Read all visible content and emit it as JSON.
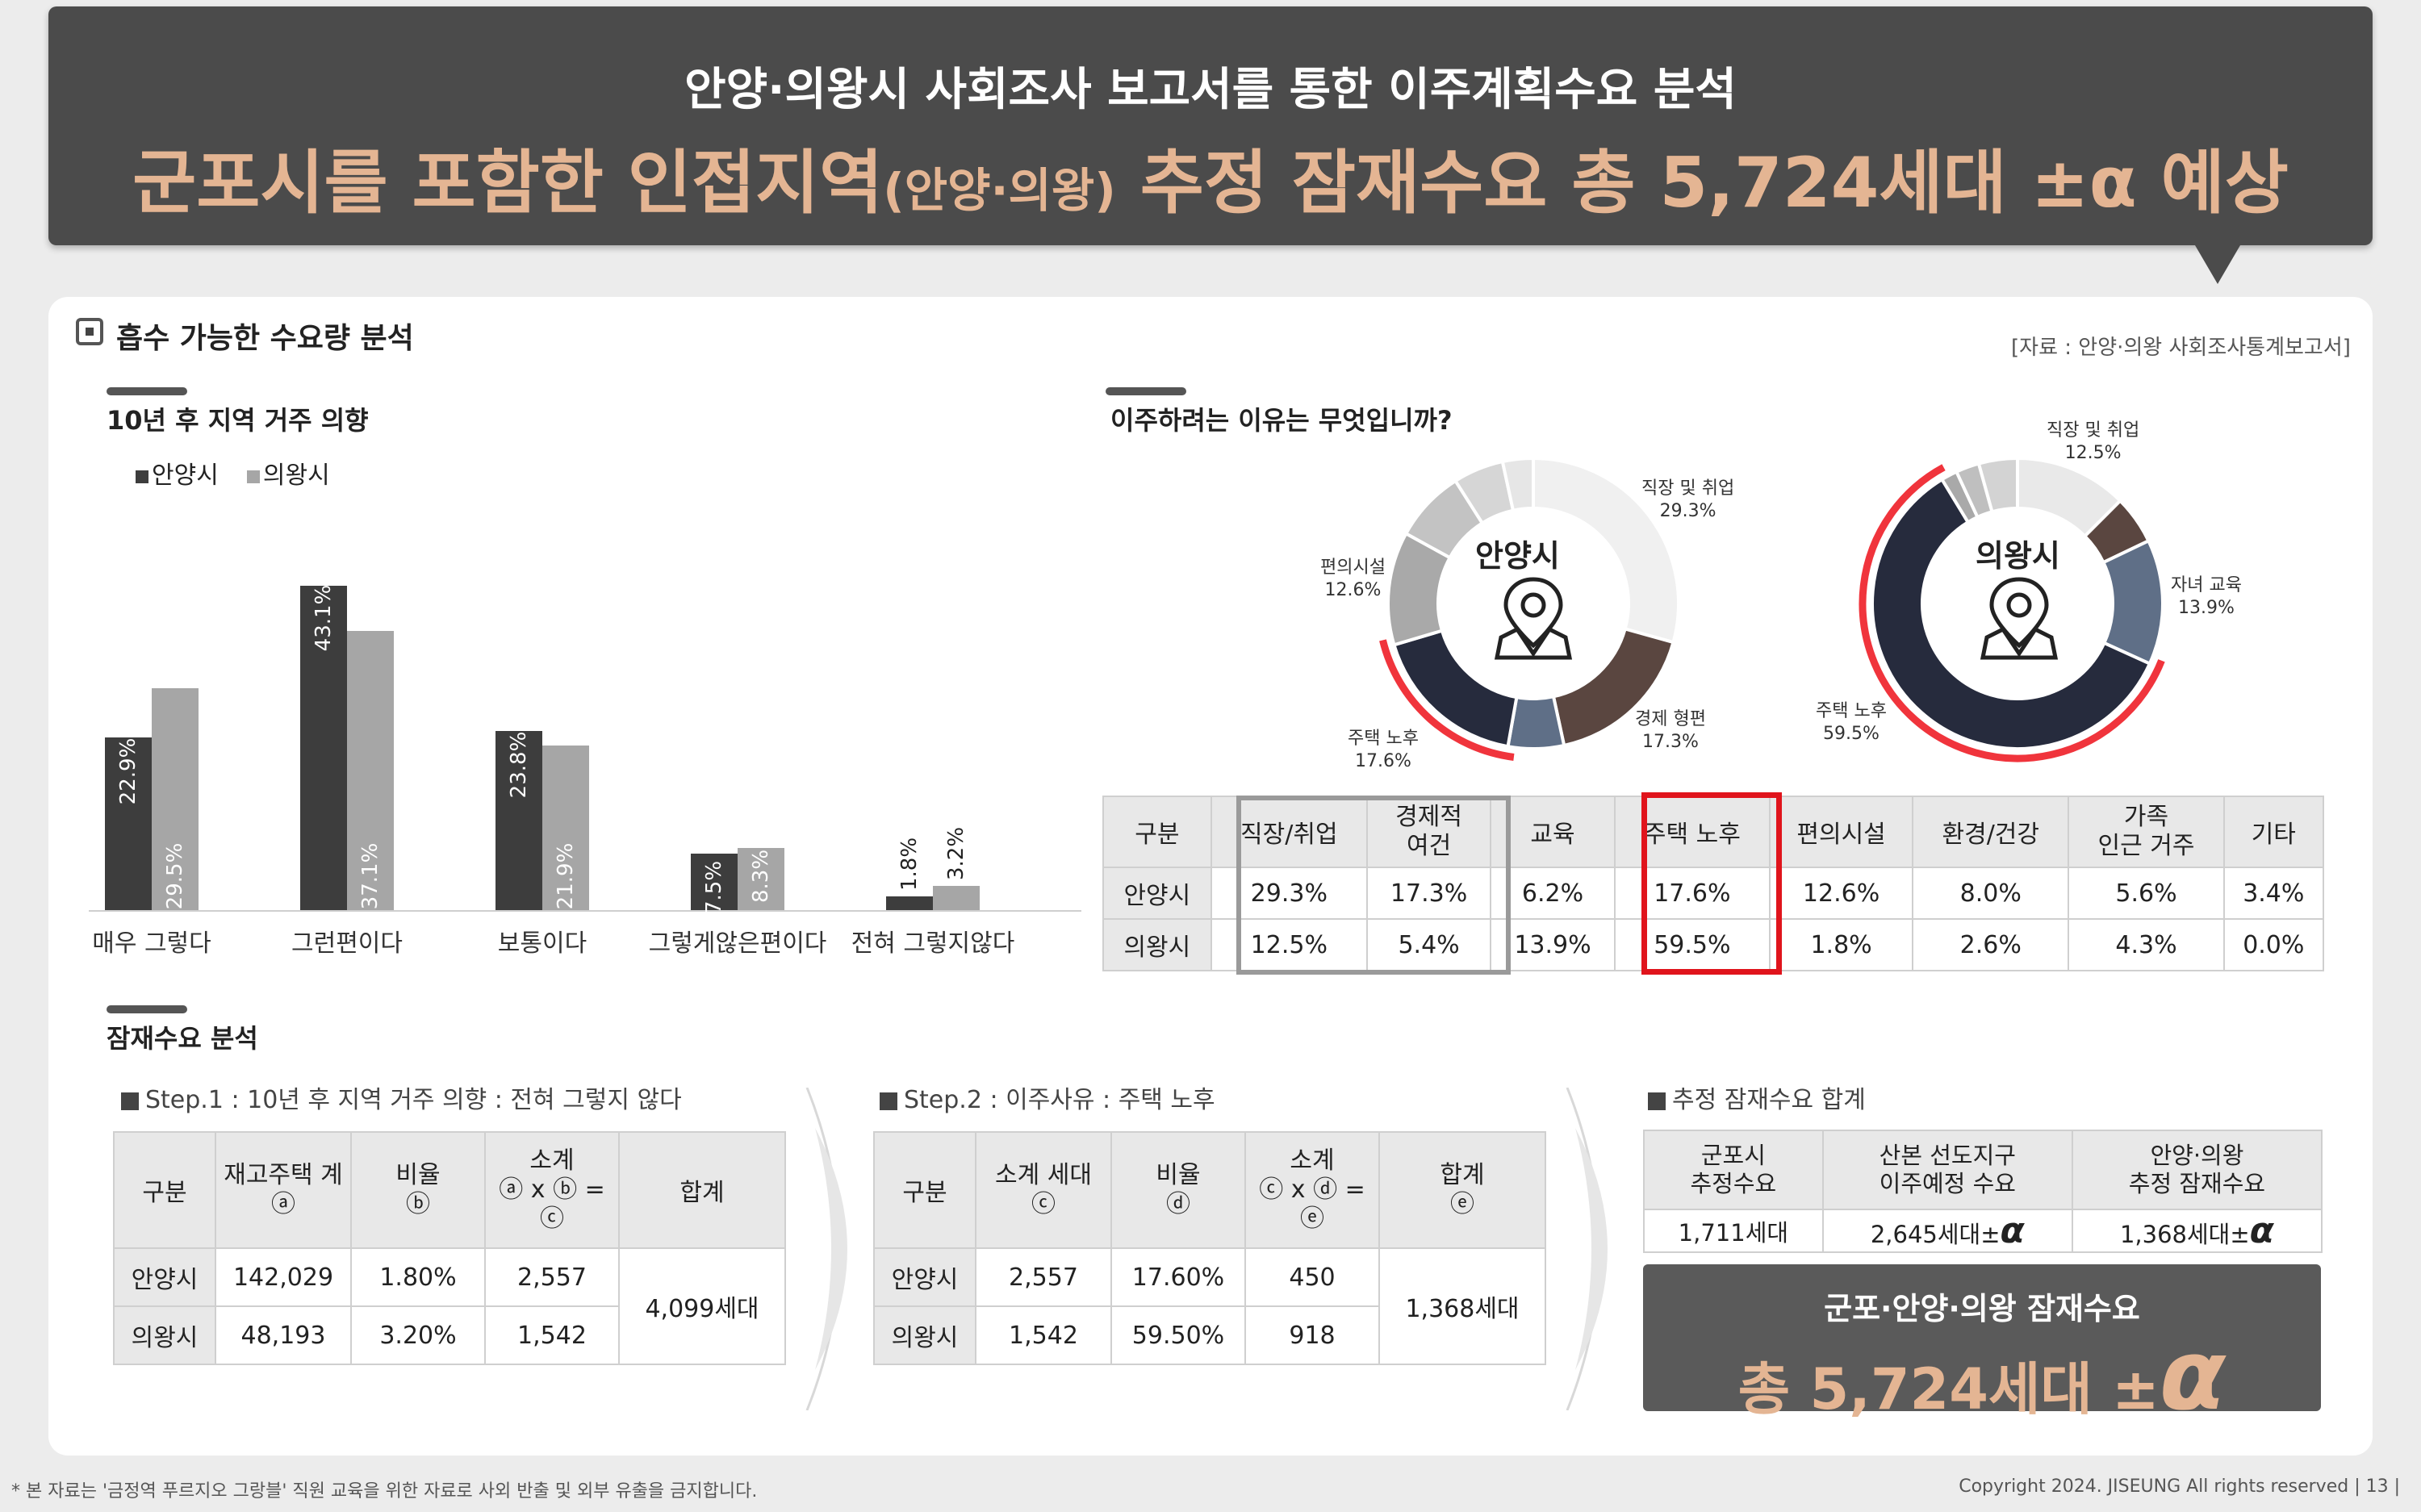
{
  "header": {
    "line1": "안양·의왕시 사회조사 보고서를 통한 이주계획수요 분석",
    "line2_a": "군포시를 포함한 인접지역",
    "line2_b": "(안양·의왕)",
    "line2_c": " 추정 잠재수요 총 5,724세대 ±α 예상"
  },
  "section": {
    "title": "흡수 가능한 수요량 분석",
    "source": "[자료 : 안양·의왕 사회조사통계보고서]"
  },
  "chart_data": [
    {
      "type": "bar",
      "title": "10년 후 지역 거주 의향",
      "categories": [
        "매우 그렇다",
        "그런편이다",
        "보통이다",
        "그렇게않은편이다",
        "전혀 그렇지않다"
      ],
      "series": [
        {
          "name": "안양시",
          "values": [
            22.9,
            43.1,
            23.8,
            7.5,
            1.8
          ],
          "labels": [
            "22.9%",
            "43.1%",
            "23.8%",
            "7.5%",
            "1.8%"
          ]
        },
        {
          "name": "의왕시",
          "values": [
            29.5,
            37.1,
            21.9,
            8.3,
            3.2
          ],
          "labels": [
            "29.5%",
            "37.1%",
            "21.9%",
            "8.3%",
            "3.2%"
          ]
        }
      ],
      "ylim": [
        0,
        45
      ],
      "colors": [
        "#3d3d3d",
        "#a6a6a6"
      ]
    },
    {
      "type": "pie",
      "title": "안양시",
      "slices": [
        {
          "label": "직장 및 취업",
          "value": 29.3,
          "color": "#f0f0f0"
        },
        {
          "label": "경제 형편",
          "value": 17.3,
          "color": "#5a4640"
        },
        {
          "label": "교육",
          "value": 6.2,
          "color": "#5f6f87"
        },
        {
          "label": "주택 노후",
          "value": 17.6,
          "color": "#262b3d"
        },
        {
          "label": "편의시설",
          "value": 12.6,
          "color": "#a9a9a9"
        },
        {
          "label": "환경/건강",
          "value": 8.0,
          "color": "#c3c3c3"
        },
        {
          "label": "가족 인근 거주",
          "value": 5.6,
          "color": "#d6d6d6"
        },
        {
          "label": "기타",
          "value": 3.4,
          "color": "#e6e6e6"
        }
      ]
    },
    {
      "type": "pie",
      "title": "의왕시",
      "slices": [
        {
          "label": "직장 및 취업",
          "value": 12.5,
          "color": "#e9e9e9"
        },
        {
          "label": "경제 형편",
          "value": 5.4,
          "color": "#5a4640"
        },
        {
          "label": "자녀 교육",
          "value": 13.9,
          "color": "#5f6f87"
        },
        {
          "label": "주택 노후",
          "value": 59.5,
          "color": "#262b3d"
        },
        {
          "label": "편의시설",
          "value": 1.8,
          "color": "#a9a9a9"
        },
        {
          "label": "환경/건강",
          "value": 2.6,
          "color": "#bfbfbf"
        },
        {
          "label": "가족 인근 거주",
          "value": 4.3,
          "color": "#d3d3d3"
        },
        {
          "label": "기타",
          "value": 0.0,
          "color": "#e6e6e6"
        }
      ]
    }
  ],
  "bar_chart": {
    "title": "10년 후 지역 거주 의향",
    "legend": [
      "안양시",
      "의왕시"
    ]
  },
  "pies": {
    "title": "이주하려는 이유는 무엇입니까?",
    "anyang": {
      "name": "안양시",
      "l1": "직장 및 취업",
      "v1": "29.3%",
      "l2": "편의시설",
      "v2": "12.6%",
      "l3": "경제 형편",
      "v3": "17.3%",
      "l4": "주택 노후",
      "v4": "17.6%"
    },
    "uiwang": {
      "name": "의왕시",
      "l1": "직장 및 취업",
      "v1": "12.5%",
      "l2": "자녀 교육",
      "v2": "13.9%",
      "l3": "주택 노후",
      "v3": "59.5%"
    }
  },
  "reason_table": {
    "headers": [
      "구분",
      "직장/취업",
      "경제적\n여건",
      "교육",
      "주택 노후",
      "편의시설",
      "환경/건강",
      "가족\n인근 거주",
      "기타"
    ],
    "rows": [
      [
        "안양시",
        "29.3%",
        "17.3%",
        "6.2%",
        "17.6%",
        "12.6%",
        "8.0%",
        "5.6%",
        "3.4%"
      ],
      [
        "의왕시",
        "12.5%",
        "5.4%",
        "13.9%",
        "59.5%",
        "1.8%",
        "2.6%",
        "4.3%",
        "0.0%"
      ]
    ]
  },
  "latent": {
    "title": "잠재수요 분석",
    "step1": {
      "label": "Step.1 : 10년 후 지역 거주 의향 : 전혀 그렇지 않다",
      "h": [
        "구분",
        "재고주택 계\nⓐ",
        "비율\nⓑ",
        "소계\nⓐ x ⓑ = ⓒ",
        "합계"
      ],
      "rows": [
        [
          "안양시",
          "142,029",
          "1.80%",
          "2,557"
        ],
        [
          "의왕시",
          "48,193",
          "3.20%",
          "1,542"
        ]
      ],
      "total": "4,099세대"
    },
    "step2": {
      "label": "Step.2 : 이주사유 : 주택 노후",
      "h": [
        "구분",
        "소계 세대\nⓒ",
        "비율\nⓓ",
        "소계\nⓒ x ⓓ = ⓔ",
        "합계\nⓔ"
      ],
      "rows": [
        [
          "안양시",
          "2,557",
          "17.60%",
          "450"
        ],
        [
          "의왕시",
          "1,542",
          "59.50%",
          "918"
        ]
      ],
      "total": "1,368세대"
    },
    "sum": {
      "label": "추정 잠재수요 합계",
      "h": [
        "군포시\n추정수요",
        "산본 선도지구\n이주예정 수요",
        "안양·의왕\n추정 잠재수요"
      ],
      "v": [
        "1,711세대",
        "2,645세대±",
        "1,368세대±"
      ],
      "alpha": "α",
      "box_l1": "군포·안양·의왕 잠재수요",
      "box_l2": "총 5,724세대 ±",
      "box_alpha": "α"
    }
  },
  "footer": {
    "left": "* 본 자료는 '금정역 푸르지오 그랑블' 직원 교육을 위한 자료로 사외 반출 및 외부 유출을 금지합니다.",
    "right": "Copyright 2024. JISEUNG All rights reserved | 13 |"
  }
}
